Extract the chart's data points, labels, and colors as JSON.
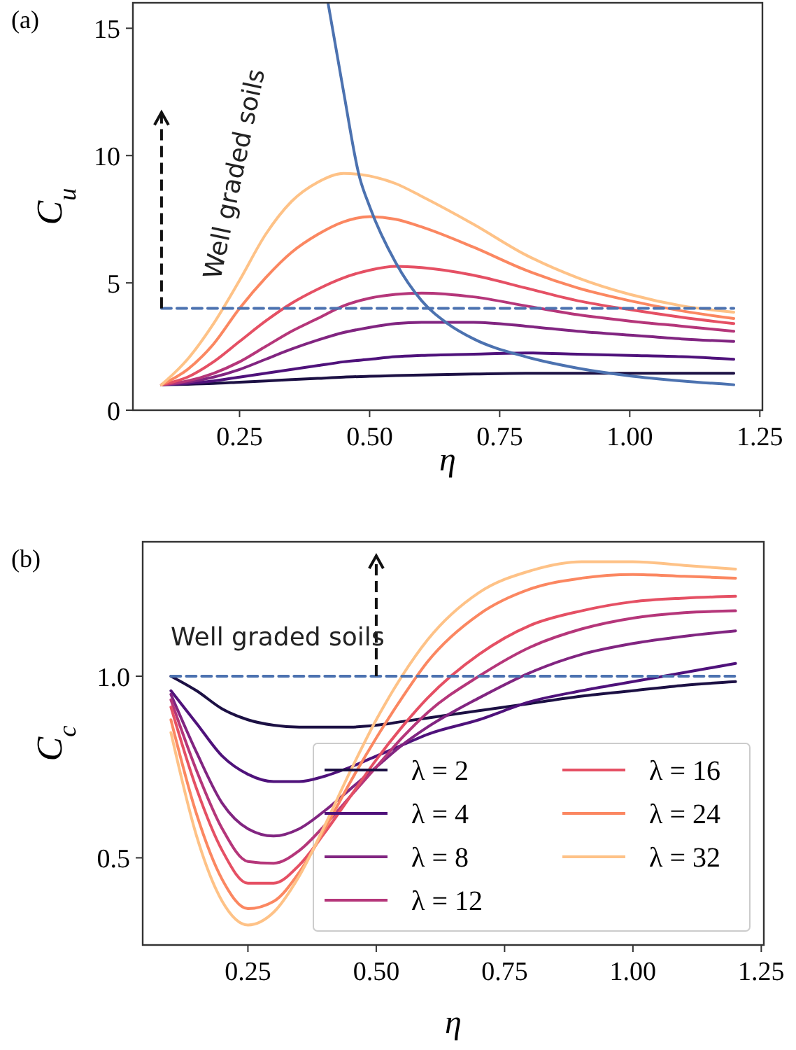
{
  "chart_data": [
    {
      "type": "line",
      "title": "(a)",
      "xlabel": "η",
      "ylabel": "C$_{u}$",
      "xlim": [
        0.045,
        1.255
      ],
      "ylim": [
        0,
        16
      ],
      "xticks": [
        {
          "value": 0.25,
          "label": "0.25"
        },
        {
          "value": 0.5,
          "label": "0.50"
        },
        {
          "value": 0.75,
          "label": "0.75"
        },
        {
          "value": 1.0,
          "label": "1.00"
        },
        {
          "value": 1.25,
          "label": "1.25"
        }
      ],
      "yticks": [
        0,
        5,
        10,
        15
      ],
      "grid": false,
      "legend": false,
      "x": [
        0.1,
        0.15,
        0.2,
        0.25,
        0.3,
        0.35,
        0.4,
        0.45,
        0.5,
        0.55,
        0.6,
        0.7,
        0.8,
        0.9,
        1.0,
        1.1,
        1.2
      ],
      "annotations": [
        {
          "text": "Well graded soils",
          "x": 0.1,
          "y": 4
        }
      ],
      "series": [
        {
          "color": "#1c1044",
          "values": [
            1,
            1.02,
            1.05,
            1.1,
            1.15,
            1.2,
            1.25,
            1.3,
            1.33,
            1.36,
            1.38,
            1.42,
            1.45,
            1.45,
            1.45,
            1.45,
            1.45
          ]
        },
        {
          "color": "#4f127b",
          "values": [
            1,
            1.05,
            1.15,
            1.3,
            1.45,
            1.6,
            1.75,
            1.9,
            2.0,
            2.1,
            2.15,
            2.2,
            2.25,
            2.2,
            2.15,
            2.1,
            2.0
          ]
        },
        {
          "color": "#812581",
          "values": [
            1,
            1.1,
            1.3,
            1.6,
            2.0,
            2.4,
            2.75,
            3.05,
            3.25,
            3.4,
            3.45,
            3.45,
            3.3,
            3.1,
            2.95,
            2.8,
            2.7
          ]
        },
        {
          "color": "#b5367a",
          "values": [
            1,
            1.15,
            1.45,
            1.9,
            2.5,
            3.1,
            3.6,
            4.1,
            4.4,
            4.55,
            4.6,
            4.45,
            4.1,
            3.75,
            3.5,
            3.3,
            3.1
          ]
        },
        {
          "color": "#e55064",
          "values": [
            1,
            1.3,
            1.9,
            2.7,
            3.5,
            4.2,
            4.75,
            5.2,
            5.5,
            5.65,
            5.6,
            5.3,
            4.8,
            4.3,
            3.95,
            3.65,
            3.4
          ]
        },
        {
          "color": "#fb8761",
          "values": [
            1,
            1.6,
            2.6,
            4.0,
            5.2,
            6.2,
            6.9,
            7.4,
            7.6,
            7.5,
            7.2,
            6.4,
            5.5,
            4.8,
            4.3,
            3.9,
            3.6
          ]
        },
        {
          "color": "#fec287",
          "values": [
            1,
            2.0,
            3.4,
            5.1,
            6.9,
            8.2,
            8.95,
            9.3,
            9.2,
            8.9,
            8.4,
            7.3,
            6.1,
            5.2,
            4.55,
            4.1,
            3.85
          ]
        },
        {
          "color": "#4c72b0",
          "x": [
            0.42,
            0.45,
            0.48,
            0.5,
            0.55,
            0.6,
            0.65,
            0.7,
            0.8,
            0.9,
            1.0,
            1.1,
            1.2
          ],
          "values": [
            16,
            12.5,
            9.2,
            8.0,
            5.8,
            4.3,
            3.4,
            2.8,
            2.1,
            1.65,
            1.35,
            1.15,
            1.0
          ]
        },
        {
          "color": "#4c72b0",
          "line_style": "dashed",
          "x": [
            0.1,
            1.2
          ],
          "values": [
            4,
            4
          ]
        }
      ]
    },
    {
      "type": "line",
      "title": "(b)",
      "xlabel": "η",
      "ylabel": "C$_{c}$",
      "xlim": [
        0.045,
        1.255
      ],
      "ylim": [
        0.26,
        1.37
      ],
      "xticks": [
        {
          "value": 0.25,
          "label": "0.25"
        },
        {
          "value": 0.5,
          "label": "0.50"
        },
        {
          "value": 0.75,
          "label": "0.75"
        },
        {
          "value": 1.0,
          "label": "1.00"
        },
        {
          "value": 1.25,
          "label": "1.25"
        }
      ],
      "yticks": [
        {
          "value": 0.5,
          "label": "0.5"
        },
        {
          "value": 1.0,
          "label": "1.0"
        }
      ],
      "grid": false,
      "legend": "bottom right",
      "x": [
        0.1,
        0.15,
        0.2,
        0.25,
        0.3,
        0.35,
        0.4,
        0.45,
        0.5,
        0.55,
        0.6,
        0.7,
        0.8,
        0.9,
        1.0,
        1.1,
        1.2
      ],
      "annotations": [
        {
          "text": "Well graded soils",
          "x": 0.5,
          "y": 1.0
        }
      ],
      "series": [
        {
          "name": "λ = 2",
          "color": "#1c1044",
          "values": [
            1.0,
            0.96,
            0.91,
            0.88,
            0.865,
            0.86,
            0.86,
            0.86,
            0.865,
            0.875,
            0.885,
            0.905,
            0.925,
            0.945,
            0.96,
            0.975,
            0.985
          ]
        },
        {
          "name": "λ = 4",
          "color": "#4f127b",
          "values": [
            0.96,
            0.87,
            0.78,
            0.73,
            0.71,
            0.71,
            0.725,
            0.75,
            0.78,
            0.81,
            0.84,
            0.88,
            0.93,
            0.96,
            0.985,
            1.01,
            1.035
          ]
        },
        {
          "name": "λ = 8",
          "color": "#812581",
          "values": [
            0.95,
            0.79,
            0.65,
            0.58,
            0.56,
            0.58,
            0.63,
            0.69,
            0.75,
            0.81,
            0.86,
            0.94,
            1.01,
            1.06,
            1.09,
            1.11,
            1.125
          ]
        },
        {
          "name": "λ = 12",
          "color": "#b5367a",
          "values": [
            0.935,
            0.74,
            0.58,
            0.49,
            0.485,
            0.52,
            0.59,
            0.67,
            0.75,
            0.83,
            0.9,
            1.0,
            1.08,
            1.13,
            1.16,
            1.175,
            1.18
          ]
        },
        {
          "name": "λ = 16",
          "color": "#e55064",
          "values": [
            0.915,
            0.69,
            0.52,
            0.43,
            0.43,
            0.48,
            0.57,
            0.67,
            0.77,
            0.86,
            0.94,
            1.06,
            1.14,
            1.18,
            1.205,
            1.215,
            1.22
          ]
        },
        {
          "name": "λ = 24",
          "color": "#fb8761",
          "values": [
            0.88,
            0.62,
            0.44,
            0.36,
            0.38,
            0.46,
            0.58,
            0.71,
            0.83,
            0.94,
            1.04,
            1.17,
            1.24,
            1.27,
            1.28,
            1.275,
            1.27
          ]
        },
        {
          "name": "λ = 32",
          "color": "#fec287",
          "values": [
            0.845,
            0.56,
            0.38,
            0.315,
            0.35,
            0.45,
            0.59,
            0.74,
            0.88,
            1.0,
            1.1,
            1.23,
            1.29,
            1.315,
            1.315,
            1.305,
            1.295
          ]
        },
        {
          "color": "#4c72b0",
          "line_style": "dashed",
          "x": [
            0.1,
            1.2
          ],
          "values": [
            1.0,
            1.0
          ]
        }
      ]
    }
  ]
}
